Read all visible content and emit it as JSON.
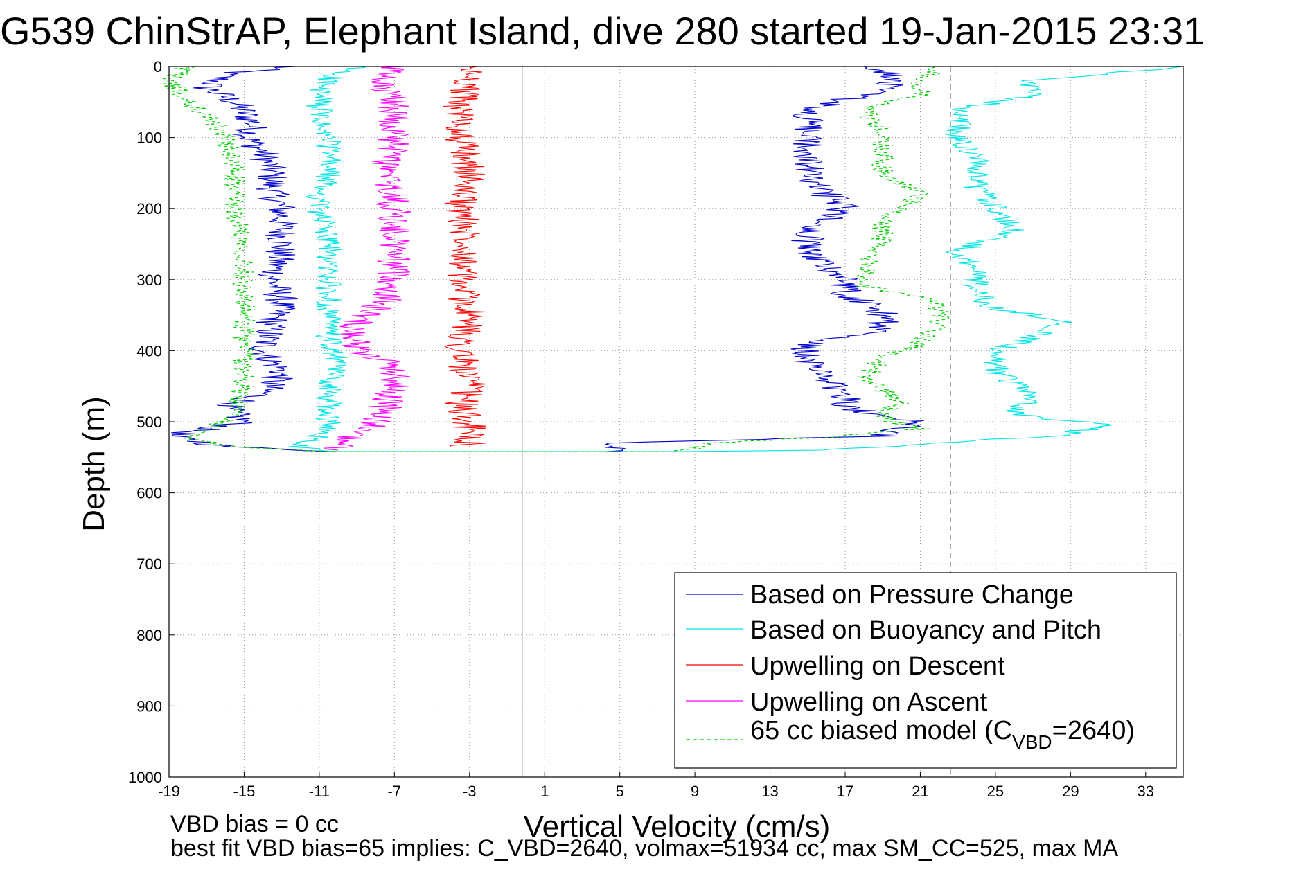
{
  "chart_data": {
    "type": "line",
    "title": "G539 ChinStrAP, Elephant Island, dive 280 started 19-Jan-2015 23:31",
    "xlabel": "Vertical Velocity (cm/s)",
    "ylabel": "Depth (m)",
    "xlim": [
      -19,
      35
    ],
    "ylim": [
      1000,
      0
    ],
    "y_inverted": true,
    "x_ticks": [
      -19,
      -15,
      -11,
      -7,
      -3,
      1,
      5,
      9,
      13,
      17,
      21,
      25,
      29,
      33
    ],
    "y_ticks": [
      0,
      100,
      200,
      300,
      400,
      500,
      600,
      700,
      800,
      900,
      1000
    ],
    "grid": true,
    "legend_position": "bottom-right",
    "reference_lines": [
      {
        "x": -0.2,
        "style": "solid"
      },
      {
        "x": 22.6,
        "style": "dashed"
      }
    ],
    "series": [
      {
        "name": "Based on Pressure Change",
        "color": "#0000cc",
        "style": "solid",
        "points": [
          [
            -12.5,
            0
          ],
          [
            -16,
            10
          ],
          [
            -17,
            30
          ],
          [
            -15.5,
            50
          ],
          [
            -14.5,
            80
          ],
          [
            -14.8,
            100
          ],
          [
            -14,
            120
          ],
          [
            -13.5,
            150
          ],
          [
            -13.5,
            180
          ],
          [
            -13,
            200
          ],
          [
            -13,
            250
          ],
          [
            -13.5,
            300
          ],
          [
            -13,
            330
          ],
          [
            -13.5,
            360
          ],
          [
            -14,
            400
          ],
          [
            -13,
            430
          ],
          [
            -14,
            460
          ],
          [
            -16,
            480
          ],
          [
            -15,
            500
          ],
          [
            -19,
            520
          ],
          [
            -16,
            535
          ],
          [
            -10,
            542
          ],
          [
            5,
            542
          ],
          [
            5,
            530
          ],
          [
            12,
            525
          ],
          [
            19,
            520
          ],
          [
            21,
            500
          ],
          [
            17,
            480
          ],
          [
            17,
            460
          ],
          [
            16,
            440
          ],
          [
            15,
            420
          ],
          [
            15,
            390
          ],
          [
            19,
            370
          ],
          [
            19,
            340
          ],
          [
            17,
            320
          ],
          [
            17,
            300
          ],
          [
            16,
            280
          ],
          [
            15,
            260
          ],
          [
            15,
            230
          ],
          [
            17,
            200
          ],
          [
            16,
            180
          ],
          [
            15,
            160
          ],
          [
            15,
            130
          ],
          [
            15,
            100
          ],
          [
            15,
            60
          ],
          [
            18,
            40
          ],
          [
            20,
            20
          ],
          [
            19,
            5
          ],
          [
            18,
            0
          ]
        ]
      },
      {
        "name": "Based on Buoyancy and Pitch",
        "color": "#00e5e5",
        "style": "solid",
        "points": [
          [
            -9,
            0
          ],
          [
            -10,
            10
          ],
          [
            -11,
            30
          ],
          [
            -11,
            60
          ],
          [
            -11,
            90
          ],
          [
            -10.5,
            100
          ],
          [
            -10.5,
            150
          ],
          [
            -11,
            180
          ],
          [
            -11,
            200
          ],
          [
            -10.5,
            250
          ],
          [
            -10.5,
            300
          ],
          [
            -10.5,
            330
          ],
          [
            -10.5,
            360
          ],
          [
            -10.5,
            390
          ],
          [
            -10,
            420
          ],
          [
            -10.5,
            450
          ],
          [
            -10.5,
            480
          ],
          [
            -10.5,
            500
          ],
          [
            -11,
            520
          ],
          [
            -12,
            535
          ],
          [
            -10,
            542
          ],
          [
            8,
            542
          ],
          [
            16,
            540
          ],
          [
            22,
            530
          ],
          [
            28,
            520
          ],
          [
            31,
            505
          ],
          [
            26,
            490
          ],
          [
            27,
            460
          ],
          [
            25,
            430
          ],
          [
            25,
            400
          ],
          [
            27,
            380
          ],
          [
            29,
            360
          ],
          [
            25,
            340
          ],
          [
            24,
            320
          ],
          [
            24,
            290
          ],
          [
            23,
            260
          ],
          [
            26,
            230
          ],
          [
            25,
            200
          ],
          [
            24,
            170
          ],
          [
            24,
            130
          ],
          [
            23,
            100
          ],
          [
            23,
            60
          ],
          [
            27,
            40
          ],
          [
            27,
            20
          ],
          [
            35,
            0
          ]
        ]
      },
      {
        "name": "Upwelling on Descent",
        "color": "#ff0000",
        "style": "solid",
        "points": [
          [
            -3,
            0
          ],
          [
            -3,
            20
          ],
          [
            -3.5,
            50
          ],
          [
            -3.5,
            100
          ],
          [
            -3,
            150
          ],
          [
            -3.5,
            200
          ],
          [
            -3,
            250
          ],
          [
            -3.5,
            300
          ],
          [
            -3,
            350
          ],
          [
            -3.5,
            400
          ],
          [
            -3,
            450
          ],
          [
            -3.5,
            480
          ],
          [
            -3,
            500
          ],
          [
            -3,
            530
          ],
          [
            -4,
            535
          ]
        ]
      },
      {
        "name": "Upwelling on Ascent",
        "color": "#ff00ff",
        "style": "solid",
        "points": [
          [
            -7,
            0
          ],
          [
            -8,
            20
          ],
          [
            -7,
            50
          ],
          [
            -7,
            100
          ],
          [
            -7.5,
            150
          ],
          [
            -7,
            200
          ],
          [
            -7,
            250
          ],
          [
            -7,
            300
          ],
          [
            -7.5,
            330
          ],
          [
            -9,
            360
          ],
          [
            -9,
            400
          ],
          [
            -7,
            420
          ],
          [
            -7,
            450
          ],
          [
            -7.5,
            480
          ],
          [
            -8,
            500
          ],
          [
            -9,
            520
          ],
          [
            -10,
            530
          ],
          [
            -10,
            540
          ]
        ]
      },
      {
        "name": "65 cc biased model (C_VBD=2640)",
        "color": "#00cc00",
        "style": "dashed",
        "points": [
          [
            -18,
            0
          ],
          [
            -19,
            20
          ],
          [
            -18,
            50
          ],
          [
            -16.5,
            80
          ],
          [
            -16,
            100
          ],
          [
            -15.5,
            150
          ],
          [
            -15.5,
            200
          ],
          [
            -15,
            250
          ],
          [
            -15,
            300
          ],
          [
            -15,
            350
          ],
          [
            -15,
            400
          ],
          [
            -15,
            450
          ],
          [
            -15.5,
            480
          ],
          [
            -16,
            500
          ],
          [
            -18,
            520
          ],
          [
            -16,
            535
          ],
          [
            -10,
            542
          ],
          [
            8,
            542
          ],
          [
            10,
            530
          ],
          [
            17,
            520
          ],
          [
            21,
            510
          ],
          [
            19,
            495
          ],
          [
            20,
            470
          ],
          [
            18,
            440
          ],
          [
            19,
            410
          ],
          [
            21,
            390
          ],
          [
            22,
            360
          ],
          [
            22,
            330
          ],
          [
            18,
            310
          ],
          [
            18,
            280
          ],
          [
            19,
            250
          ],
          [
            19,
            220
          ],
          [
            21,
            180
          ],
          [
            19,
            150
          ],
          [
            19,
            120
          ],
          [
            19,
            90
          ],
          [
            18,
            60
          ],
          [
            21,
            40
          ],
          [
            21,
            20
          ],
          [
            22,
            0
          ]
        ]
      }
    ]
  },
  "legend": {
    "entries": [
      "Based on Pressure Change",
      "Based on Buoyancy and Pitch",
      "Upwelling on Descent",
      "Upwelling on Ascent",
      "65 cc biased model (C"
    ],
    "model_sub": "VBD",
    "model_tail": "=2640)"
  },
  "notes": {
    "line1": "VBD bias = 0 cc",
    "line2": "best fit VBD bias=65 implies: C_VBD=2640, volmax=51934 cc, max SM_CC=525, max MA"
  }
}
